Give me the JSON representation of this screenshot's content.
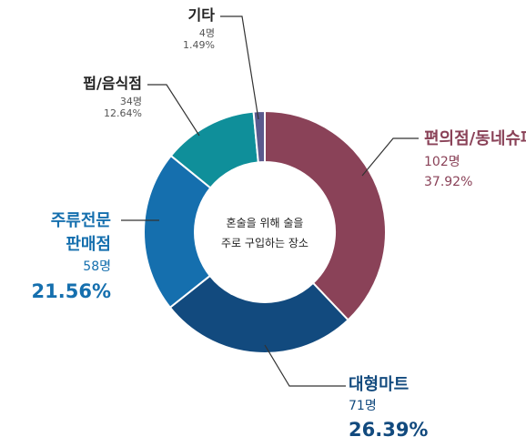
{
  "chart_data": {
    "type": "pie",
    "title": "",
    "center_text": [
      "혼술을 위해 술을",
      "주로 구입하는 장소"
    ],
    "slices": [
      {
        "label": "편의점/동네슈퍼",
        "count": "102명",
        "percent": "37.92%",
        "value": 37.92,
        "color": "#8a4258"
      },
      {
        "label": "대형마트",
        "count": "71명",
        "percent": "26.39%",
        "value": 26.39,
        "color": "#124a7e"
      },
      {
        "label": "주류전문 판매점",
        "label_lines": [
          "주류전문",
          "판매점"
        ],
        "count": "58명",
        "percent": "21.56%",
        "value": 21.56,
        "color": "#156fae"
      },
      {
        "label": "펍/음식점",
        "count": "34명",
        "percent": "12.64%",
        "value": 12.64,
        "color": "#0f8f9a"
      },
      {
        "label": "기타",
        "count": "4명",
        "percent": "1.49%",
        "value": 1.49,
        "color": "#5a5a8e"
      }
    ]
  }
}
